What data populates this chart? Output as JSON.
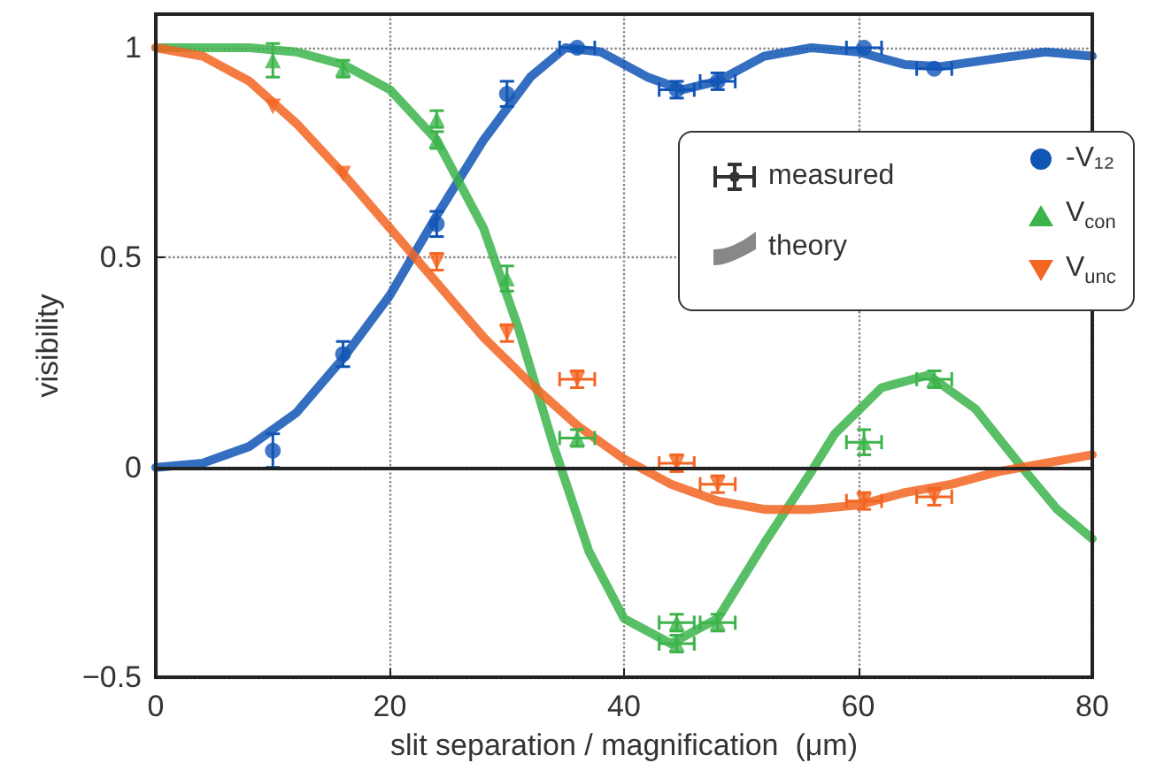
{
  "chart_data": {
    "type": "scatter",
    "xlabel": "slit separation / magnification  (μm)",
    "ylabel": "visibility",
    "xlim": [
      0,
      80
    ],
    "xticks": [
      0,
      20,
      40,
      60,
      80
    ],
    "ylim": [
      -0.5,
      1.08
    ],
    "yticks": [
      {
        "value": -0.5,
        "label": "−0.5"
      },
      0,
      0.5,
      1
    ],
    "grid": true,
    "legend": "right",
    "annotations": [
      "measured",
      "theory"
    ],
    "ref_lines": [
      {
        "axis": "y",
        "value": 0,
        "color": "#222222",
        "line_style": "solid"
      }
    ],
    "series": [
      {
        "name": "-V₁₂",
        "marker": "circle",
        "color": "#1155b5",
        "x": [
          10,
          16,
          24,
          30,
          36,
          44.5,
          48,
          60.5,
          66.5
        ],
        "values": [
          0.04,
          0.27,
          0.58,
          0.89,
          1.0,
          0.9,
          0.92,
          1.0,
          0.95
        ],
        "errors": [
          0.04,
          0.03,
          0.03,
          0.03,
          null,
          0.02,
          0.02,
          null,
          null
        ],
        "xerrors": [
          null,
          null,
          null,
          null,
          1.5,
          1.5,
          1.5,
          1.5,
          1.5
        ]
      },
      {
        "name": "V$_{con}$",
        "marker": "triangle",
        "color": "#3cb44b",
        "x": [
          10,
          16,
          24,
          24,
          30,
          36,
          44.5,
          44.5,
          48,
          60.5,
          66.5
        ],
        "values": [
          0.97,
          0.95,
          0.83,
          0.78,
          0.45,
          0.07,
          -0.37,
          -0.42,
          -0.37,
          0.06,
          0.21
        ],
        "errors": [
          0.04,
          0.02,
          0.02,
          0.02,
          0.03,
          0.02,
          0.02,
          0.02,
          0.02,
          0.03,
          0.02
        ],
        "xerrors": [
          null,
          null,
          null,
          null,
          null,
          1.5,
          1.5,
          1.5,
          1.5,
          1.5,
          1.5
        ]
      },
      {
        "name": "V$_{unc}$",
        "marker": "triangle-down",
        "color": "#f26522",
        "x": [
          10,
          16,
          24,
          30,
          36,
          44.5,
          48,
          60.5,
          66.5
        ],
        "values": [
          0.86,
          0.7,
          0.49,
          0.32,
          0.21,
          0.01,
          -0.04,
          -0.08,
          -0.07
        ],
        "errors": [
          null,
          null,
          0.02,
          0.02,
          0.02,
          0.02,
          0.02,
          0.02,
          0.02
        ],
        "xerrors": [
          null,
          null,
          null,
          null,
          1.5,
          1.5,
          1.5,
          1.5,
          1.5
        ]
      },
      {
        "type": "line",
        "color": "#1155b5",
        "x": [
          0,
          4,
          8,
          12,
          16,
          20,
          24,
          28,
          32,
          35,
          38,
          42,
          45,
          48,
          52,
          56,
          60,
          64,
          67,
          72,
          76,
          80
        ],
        "values": [
          0,
          0.01,
          0.05,
          0.13,
          0.26,
          0.41,
          0.6,
          0.78,
          0.93,
          1.0,
          0.99,
          0.93,
          0.9,
          0.92,
          0.98,
          1.0,
          0.99,
          0.96,
          0.955,
          0.975,
          0.99,
          0.98
        ]
      },
      {
        "type": "line",
        "color": "#3cb44b",
        "x": [
          0,
          8,
          12,
          16,
          20,
          24,
          28,
          31,
          34,
          37,
          40,
          44,
          48,
          52,
          56,
          58,
          62,
          66,
          70,
          74,
          77,
          80
        ],
        "values": [
          1,
          1,
          0.99,
          0.96,
          0.9,
          0.78,
          0.57,
          0.33,
          0.05,
          -0.2,
          -0.36,
          -0.42,
          -0.36,
          -0.18,
          -0.01,
          0.08,
          0.19,
          0.22,
          0.14,
          0.0,
          -0.1,
          -0.17
        ]
      },
      {
        "type": "line",
        "color": "#f26522",
        "x": [
          0,
          4,
          8,
          12,
          16,
          20,
          24,
          28,
          32,
          36,
          40,
          44,
          48,
          52,
          56,
          60,
          64,
          68,
          72,
          76,
          80
        ],
        "values": [
          1,
          0.98,
          0.92,
          0.82,
          0.7,
          0.57,
          0.44,
          0.31,
          0.2,
          0.1,
          0.02,
          -0.04,
          -0.08,
          -0.1,
          -0.1,
          -0.09,
          -0.06,
          -0.04,
          -0.01,
          0.01,
          0.03
        ]
      }
    ]
  }
}
